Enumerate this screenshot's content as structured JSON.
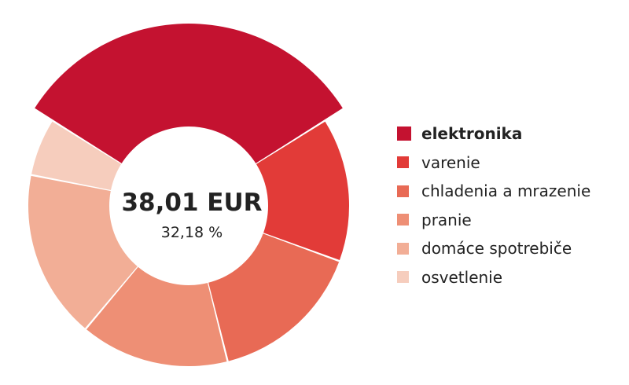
{
  "chart_data": {
    "type": "pie",
    "style": "donut",
    "categories": [
      "elektronika",
      "varenie",
      "chladenia a mrazenie",
      "pranie",
      "domáce spotrebiče",
      "osvetlenie"
    ],
    "percents": [
      32.18,
      14.5,
      15.5,
      15.0,
      17.0,
      5.82
    ],
    "colors": [
      "#c41230",
      "#e23b38",
      "#e86a55",
      "#ee8f75",
      "#f2ae96",
      "#f6cdbd"
    ],
    "selected": "elektronika",
    "center_value": "38,01 EUR",
    "center_percent": "32,18 %",
    "legend_position": "right"
  }
}
